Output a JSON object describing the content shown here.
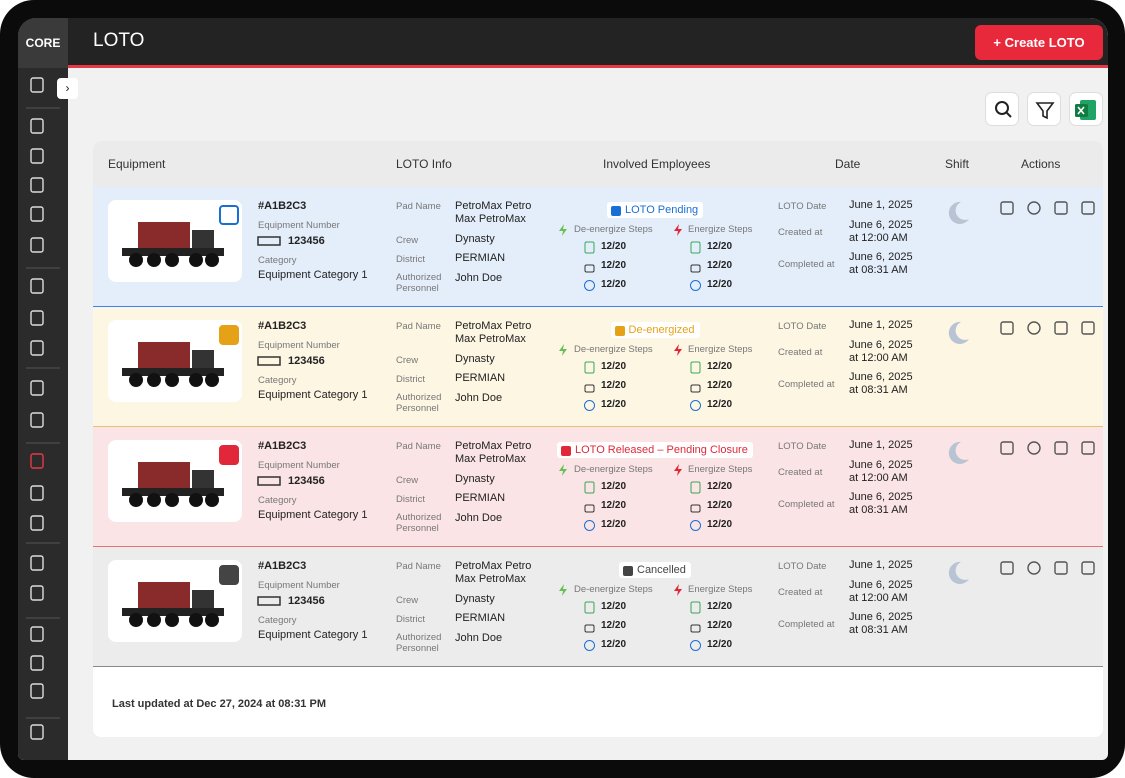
{
  "header": {
    "logo": "CORE",
    "title": "LOTO",
    "create_button": "+ Create LOTO"
  },
  "table": {
    "columns": [
      "Equipment",
      "LOTO Info",
      "Involved Employees",
      "Date",
      "Shift",
      "Actions"
    ],
    "labels": {
      "equipment_number": "Equipment Number",
      "category": "Category",
      "pad_name": "Pad Name",
      "crew": "Crew",
      "district": "District",
      "authorized": "Authorized Personnel",
      "deenergize": "De-energize Steps",
      "energize": "Energize Steps",
      "loto_date": "LOTO Date",
      "created": "Created at",
      "completed": "Completed at"
    },
    "rows": [
      {
        "id": "#A1B2C3",
        "equipment_number": "123456",
        "category": "Equipment Category 1",
        "pad_name": "PetroMax Petro Max PetroMax",
        "crew": "Dynasty",
        "district": "PERMIAN",
        "authorized": "John Doe",
        "status": "LOTO Pending",
        "deenergize": [
          "12/20",
          "12/20",
          "12/20"
        ],
        "energize": [
          "12/20",
          "12/20",
          "12/20"
        ],
        "loto_date": "June 1, 2025",
        "created": "June 6, 2025 at 12:00 AM",
        "completed": "June 6, 2025 at 08:31 AM"
      },
      {
        "id": "#A1B2C3",
        "equipment_number": "123456",
        "category": "Equipment Category 1",
        "pad_name": "PetroMax Petro Max PetroMax",
        "crew": "Dynasty",
        "district": "PERMIAN",
        "authorized": "John Doe",
        "status": "De-energized",
        "deenergize": [
          "12/20",
          "12/20",
          "12/20"
        ],
        "energize": [
          "12/20",
          "12/20",
          "12/20"
        ],
        "loto_date": "June 1, 2025",
        "created": "June 6, 2025 at 12:00 AM",
        "completed": "June 6, 2025 at 08:31 AM"
      },
      {
        "id": "#A1B2C3",
        "equipment_number": "123456",
        "category": "Equipment Category 1",
        "pad_name": "PetroMax Petro Max PetroMax",
        "crew": "Dynasty",
        "district": "PERMIAN",
        "authorized": "John Doe",
        "status": "LOTO Released – Pending Closure",
        "deenergize": [
          "12/20",
          "12/20",
          "12/20"
        ],
        "energize": [
          "12/20",
          "12/20",
          "12/20"
        ],
        "loto_date": "June 1, 2025",
        "created": "June 6, 2025 at 12:00 AM",
        "completed": "June 6, 2025 at 08:31 AM"
      },
      {
        "id": "#A1B2C3",
        "equipment_number": "123456",
        "category": "Equipment Category 1",
        "pad_name": "PetroMax Petro Max PetroMax",
        "crew": "Dynasty",
        "district": "PERMIAN",
        "authorized": "John Doe",
        "status": "Cancelled",
        "deenergize": [
          "12/20",
          "12/20",
          "12/20"
        ],
        "energize": [
          "12/20",
          "12/20",
          "12/20"
        ],
        "loto_date": "June 1, 2025",
        "created": "June 6, 2025 at 12:00 AM",
        "completed": "June 6, 2025 at 08:31 AM"
      }
    ]
  },
  "footer": {
    "last_updated": "Last updated at Dec 27, 2024 at 08:31 PM"
  }
}
